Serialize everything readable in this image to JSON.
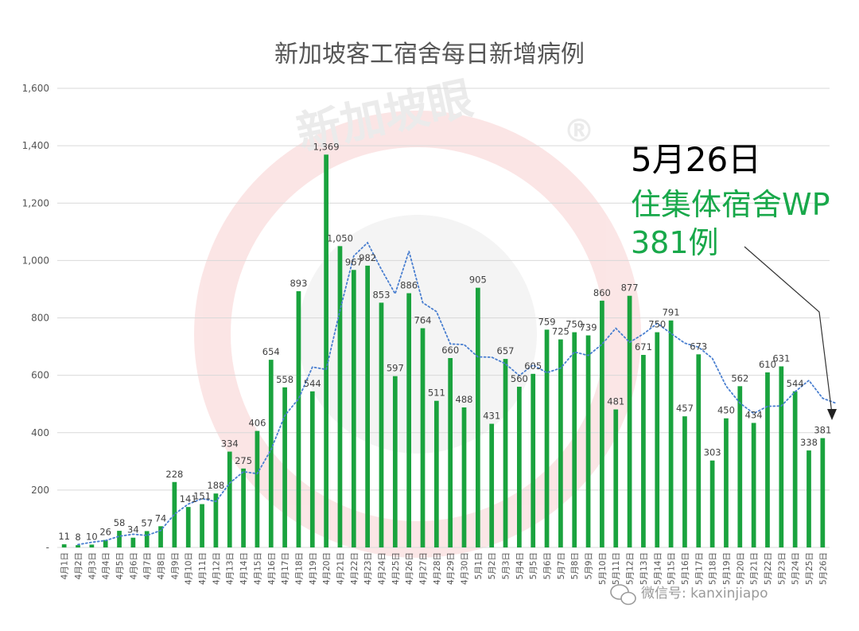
{
  "chart_data": {
    "type": "bar",
    "title": "新加坡客工宿舍每日新增病例",
    "xlabel": "",
    "ylabel": "",
    "ylim": [
      0,
      1600
    ],
    "yticks": [
      "-",
      "200",
      "400",
      "600",
      "800",
      "1,000",
      "1,200",
      "1,400",
      "1,600"
    ],
    "ytick_values": [
      0,
      200,
      400,
      600,
      800,
      1000,
      1200,
      1400,
      1600
    ],
    "grid": true,
    "legend": "none",
    "bar_color": "#1aa33e",
    "trend_color": "#4a7fd0",
    "categories": [
      "4月1日",
      "4月2日",
      "4月3日",
      "4月4日",
      "4月5日",
      "4月6日",
      "4月7日",
      "4月8日",
      "4月9日",
      "4月10日",
      "4月11日",
      "4月12日",
      "4月13日",
      "4月14日",
      "4月15日",
      "4月16日",
      "4月17日",
      "4月18日",
      "4月19日",
      "4月20日",
      "4月21日",
      "4月22日",
      "4月23日",
      "4月24日",
      "4月25日",
      "4月26日",
      "4月27日",
      "4月28日",
      "4月29日",
      "4月30日",
      "5月1日",
      "5月2日",
      "5月3日",
      "5月4日",
      "5月5日",
      "5月6日",
      "5月7日",
      "5月8日",
      "5月9日",
      "5月10日",
      "5月11日",
      "5月12日",
      "5月13日",
      "5月14日",
      "5月15日",
      "5月16日",
      "5月17日",
      "5月18日",
      "5月19日",
      "5月20日",
      "5月21日",
      "5月22日",
      "5月23日",
      "5月24日",
      "5月25日",
      "5月26日"
    ],
    "values": [
      11,
      8,
      10,
      26,
      58,
      34,
      57,
      74,
      228,
      141,
      151,
      188,
      334,
      275,
      406,
      654,
      558,
      893,
      544,
      1369,
      1050,
      967,
      982,
      853,
      597,
      886,
      764,
      511,
      660,
      488,
      905,
      431,
      657,
      560,
      605,
      759,
      725,
      750,
      739,
      860,
      481,
      877,
      671,
      750,
      791,
      457,
      673,
      303,
      450,
      562,
      434,
      610,
      631,
      544,
      338,
      381
    ],
    "data_labels": [
      "11",
      "8",
      "10",
      "26",
      "58",
      "34",
      "57",
      "74",
      "228",
      "141",
      "151",
      "188",
      "334",
      "275",
      "406",
      "654",
      "558",
      "893",
      "544",
      "1,369",
      "1,050",
      "967",
      "982",
      "853",
      "597",
      "886",
      "764",
      "511",
      "660",
      "488",
      "905",
      "431",
      "657",
      "560",
      "605",
      "759",
      "725",
      "750",
      "739",
      "860",
      "481",
      "877",
      "671",
      "750",
      "791",
      "457",
      "673",
      "303",
      "450",
      "562",
      "434",
      "610",
      "631",
      "544",
      "338",
      "381"
    ],
    "trend": {
      "type": "moving-average",
      "style": "dotted",
      "start_index": 1,
      "values": [
        10,
        18,
        24,
        39,
        46,
        42,
        59,
        116,
        151,
        170,
        160,
        224,
        264,
        257,
        341,
        460,
        518,
        629,
        620,
        827,
        1016,
        1062,
        969,
        884,
        1032,
        853,
        822,
        709,
        707,
        664,
        663,
        640,
        599,
        636,
        609,
        625,
        681,
        669,
        708,
        764,
        715,
        744,
        781,
        746,
        712,
        698,
        659,
        562,
        503,
        467,
        492,
        493,
        543,
        582,
        520,
        502
      ]
    }
  },
  "annotation": {
    "date": "5月26日",
    "line1": "住集体宿舍WP",
    "line2": "381例"
  },
  "watermark": {
    "text": "新加坡眼",
    "mark": "®"
  },
  "footer": {
    "wechat": "微信号: kanxinjiapo"
  }
}
